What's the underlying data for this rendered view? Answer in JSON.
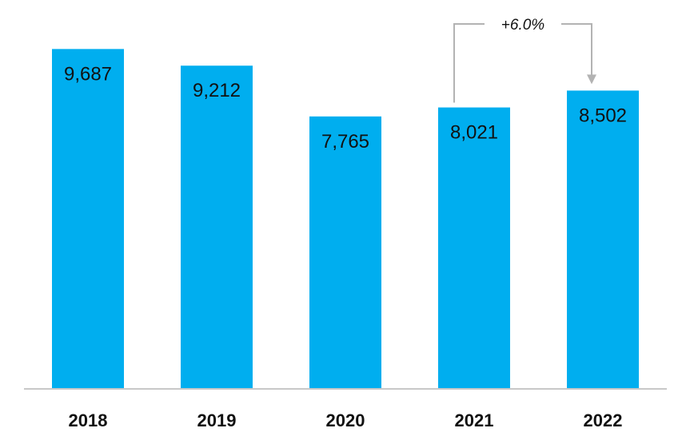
{
  "chart_data": {
    "type": "bar",
    "categories": [
      "2018",
      "2019",
      "2020",
      "2021",
      "2022"
    ],
    "values": [
      9687,
      9212,
      7765,
      8021,
      8502
    ],
    "value_labels": [
      "9,687",
      "9,212",
      "7,765",
      "8,021",
      "8,502"
    ],
    "ylim": [
      0,
      9900
    ],
    "grid": false,
    "bar_color": "#00aeef",
    "axis_color": "#c8c8c8",
    "annotation": {
      "text": "+6.0%",
      "from": "2021",
      "to": "2022",
      "color": "#b3b3b3"
    }
  }
}
